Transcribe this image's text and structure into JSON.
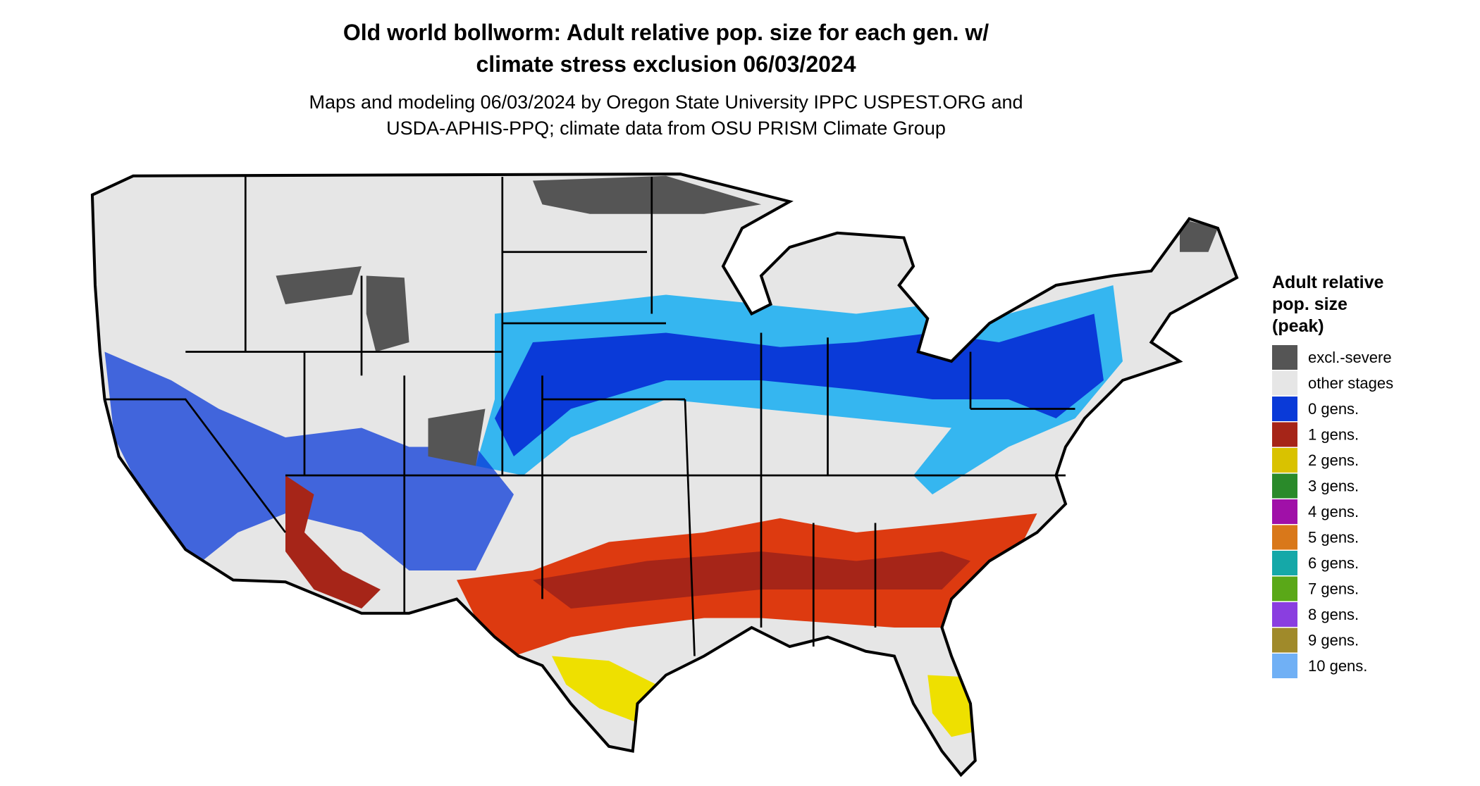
{
  "title": [
    "Old world bollworm: Adult relative pop. size for each gen. w/",
    "climate stress exclusion 06/03/2024"
  ],
  "subtitle": [
    "Maps and modeling 06/03/2024 by Oregon State University IPPC USPEST.ORG and",
    "USDA-APHIS-PPQ; climate data from OSU PRISM Climate Group"
  ],
  "legend": {
    "title": [
      "Adult relative",
      "pop. size",
      "(peak)"
    ],
    "items": [
      {
        "label": "excl.-severe",
        "color": "#555555"
      },
      {
        "label": "other stages",
        "color": "#e6e6e6"
      },
      {
        "label": "0 gens.",
        "color": "#0a3ad8"
      },
      {
        "label": "1 gens.",
        "color": "#a62518"
      },
      {
        "label": "2 gens.",
        "color": "#d9c200"
      },
      {
        "label": "3 gens.",
        "color": "#2a8a2a"
      },
      {
        "label": "4 gens.",
        "color": "#a010a8"
      },
      {
        "label": "5 gens.",
        "color": "#d9781a"
      },
      {
        "label": "6 gens.",
        "color": "#15a8a8"
      },
      {
        "label": "7 gens.",
        "color": "#5aa818"
      },
      {
        "label": "8 gens.",
        "color": "#8a3ee0"
      },
      {
        "label": "9 gens.",
        "color": "#a08a2a"
      },
      {
        "label": "10 gens.",
        "color": "#70b0f5"
      }
    ]
  }
}
